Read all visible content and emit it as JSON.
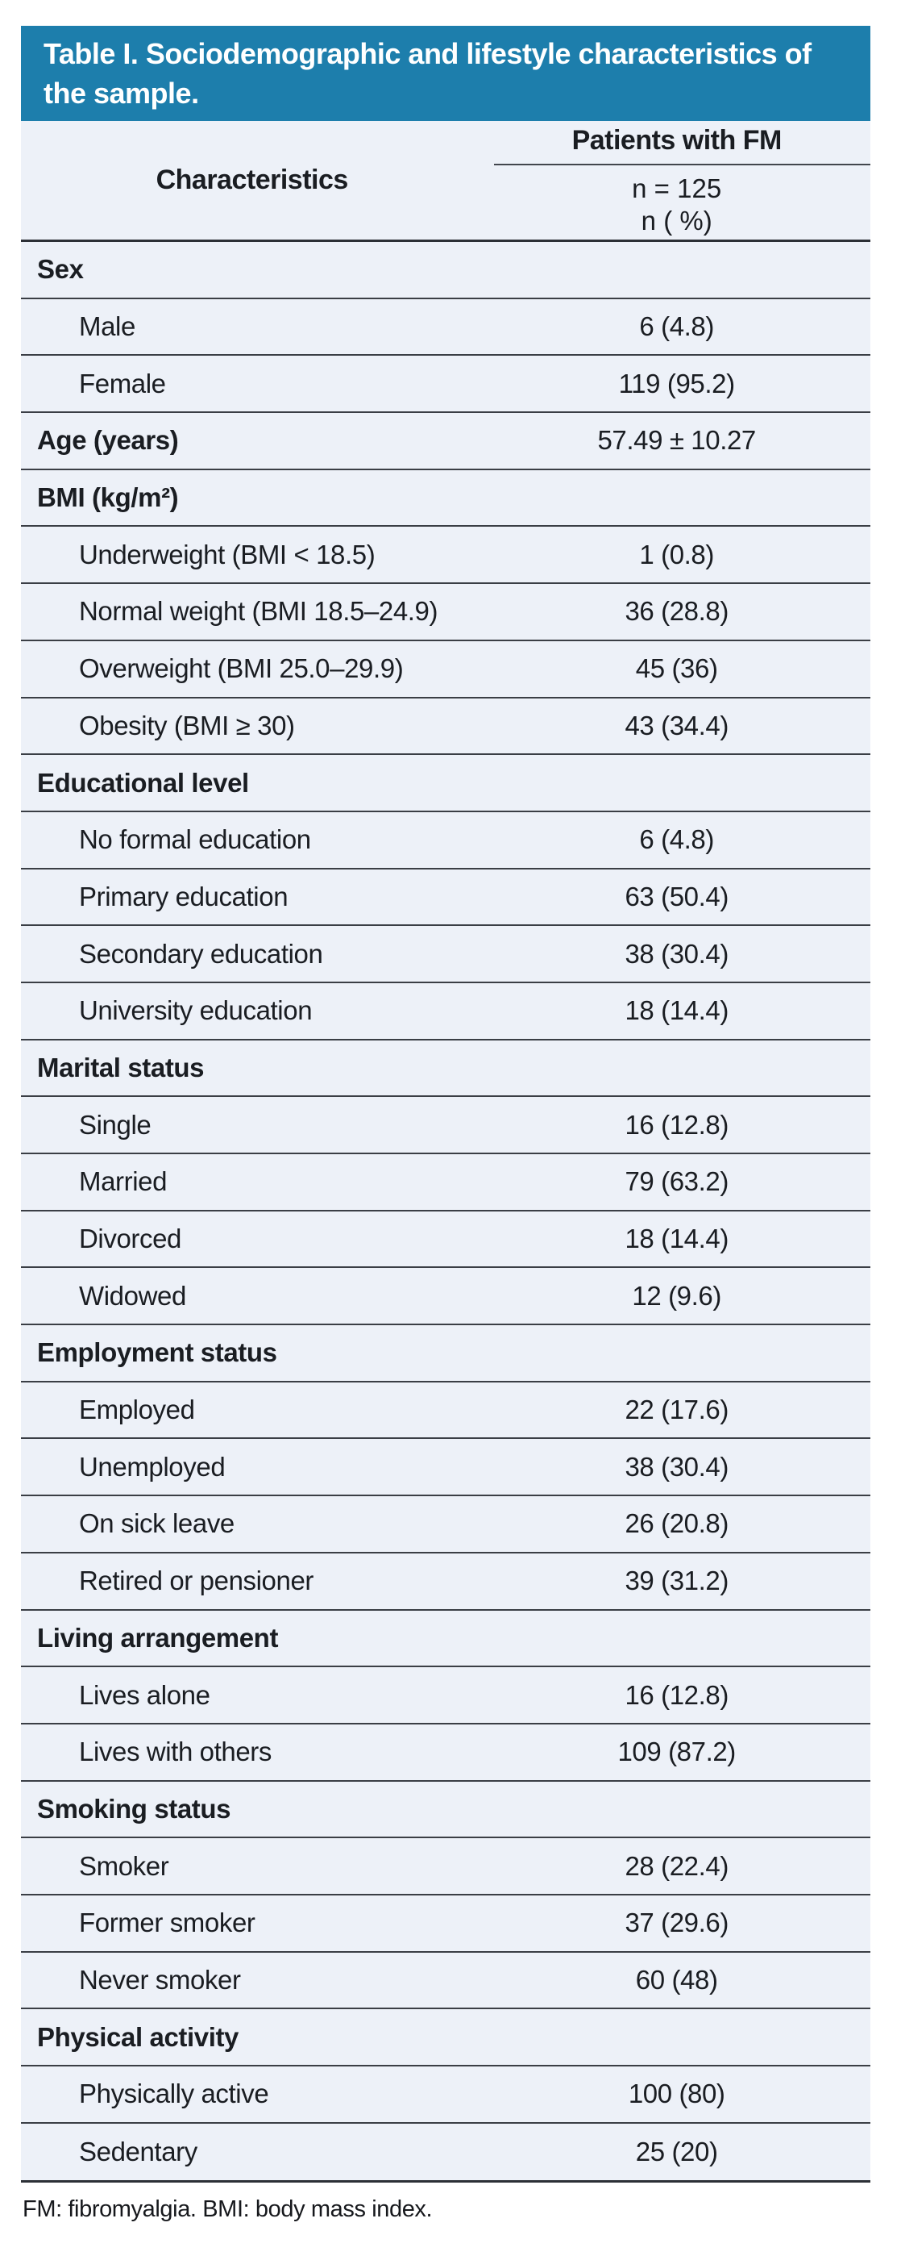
{
  "title": "Table I. Sociodemographic and lifestyle characteristics of the sample.",
  "header": {
    "col1": "Characteristics",
    "col2_group": "Patients with FM",
    "col2_sub1": "n = 125",
    "col2_sub2": "n ( %)"
  },
  "rows": [
    {
      "label": "Sex",
      "value": "",
      "type": "section"
    },
    {
      "label": "Male",
      "value": "6 (4.8)",
      "type": "item"
    },
    {
      "label": "Female",
      "value": "119 (95.2)",
      "type": "item"
    },
    {
      "label": "Age (years)",
      "value": "57.49 ± 10.27",
      "type": "section"
    },
    {
      "label": "BMI (kg/m²)",
      "value": "",
      "type": "section"
    },
    {
      "label": "Underweight (BMI < 18.5)",
      "value": "1 (0.8)",
      "type": "item"
    },
    {
      "label": "Normal weight (BMI 18.5–24.9)",
      "value": "36 (28.8)",
      "type": "item"
    },
    {
      "label": "Overweight (BMI 25.0–29.9)",
      "value": "45 (36)",
      "type": "item"
    },
    {
      "label": "Obesity (BMI ≥ 30)",
      "value": "43 (34.4)",
      "type": "item"
    },
    {
      "label": "Educational level",
      "value": "",
      "type": "section"
    },
    {
      "label": "No formal education",
      "value": "6 (4.8)",
      "type": "item"
    },
    {
      "label": "Primary education",
      "value": "63 (50.4)",
      "type": "item"
    },
    {
      "label": "Secondary education",
      "value": "38 (30.4)",
      "type": "item"
    },
    {
      "label": "University education",
      "value": "18 (14.4)",
      "type": "item"
    },
    {
      "label": "Marital status",
      "value": "",
      "type": "section"
    },
    {
      "label": "Single",
      "value": "16 (12.8)",
      "type": "item"
    },
    {
      "label": "Married",
      "value": "79 (63.2)",
      "type": "item"
    },
    {
      "label": "Divorced",
      "value": "18 (14.4)",
      "type": "item"
    },
    {
      "label": "Widowed",
      "value": "12 (9.6)",
      "type": "item"
    },
    {
      "label": "Employment status",
      "value": "",
      "type": "section"
    },
    {
      "label": "Employed",
      "value": "22 (17.6)",
      "type": "item"
    },
    {
      "label": "Unemployed",
      "value": "38 (30.4)",
      "type": "item"
    },
    {
      "label": "On sick leave",
      "value": "26 (20.8)",
      "type": "item"
    },
    {
      "label": "Retired or pensioner",
      "value": "39 (31.2)",
      "type": "item"
    },
    {
      "label": "Living arrangement",
      "value": "",
      "type": "section"
    },
    {
      "label": "Lives alone",
      "value": "16 (12.8)",
      "type": "item"
    },
    {
      "label": "Lives with others",
      "value": "109 (87.2)",
      "type": "item"
    },
    {
      "label": "Smoking status",
      "value": "",
      "type": "section"
    },
    {
      "label": "Smoker",
      "value": "28 (22.4)",
      "type": "item"
    },
    {
      "label": "Former smoker",
      "value": "37 (29.6)",
      "type": "item"
    },
    {
      "label": "Never smoker",
      "value": "60 (48)",
      "type": "item"
    },
    {
      "label": "Physical activity",
      "value": "",
      "type": "section"
    },
    {
      "label": "Physically active",
      "value": "100 (80)",
      "type": "item"
    },
    {
      "label": "Sedentary",
      "value": "25 (20)",
      "type": "item"
    }
  ],
  "footnote": "FM: fibromyalgia. BMI: body mass index.",
  "colors": {
    "title_bg": "#1d7eac",
    "title_text": "#ffffff",
    "table_bg": "#edf1f8",
    "row_divider": "#3a3e45",
    "strong_divider": "#2c3036",
    "text": "#1a1d22"
  }
}
